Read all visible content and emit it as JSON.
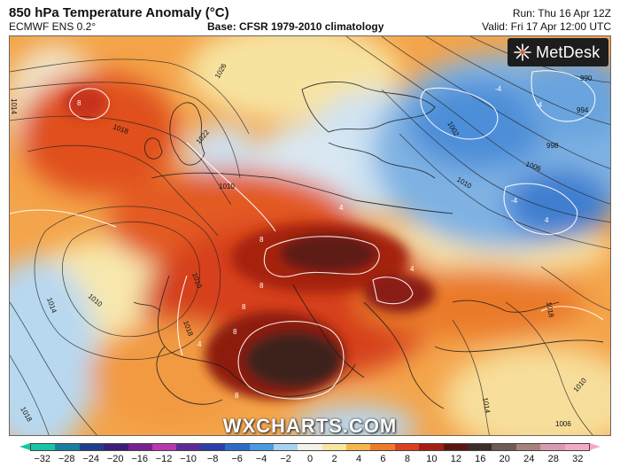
{
  "header": {
    "title": "850 hPa Temperature Anomaly (°C)",
    "model": "ECMWF ENS 0.2°",
    "base": "Base: CFSR 1979-2010 climatology",
    "run": "Run: Thu 16 Apr 12Z",
    "valid": "Valid: Fri 17 Apr 12:00 UTC"
  },
  "logo": {
    "text": "MetDesk",
    "icon": "metdesk-burst-icon"
  },
  "watermark": "WXCHARTS.COM",
  "isobar_labels": [
    "1026",
    "1022",
    "1018",
    "1014",
    "1010",
    "1010",
    "1014",
    "1010",
    "1018",
    "1002",
    "1006",
    "998",
    "994",
    "990",
    "1010",
    "1006",
    "1014",
    "1010",
    "1018",
    "1018"
  ],
  "anomaly_labels": [
    "8",
    "8",
    "8",
    "8",
    "8",
    "8",
    "4",
    "4",
    "4",
    "4",
    "-4",
    "-4",
    "-4"
  ],
  "colorbar": {
    "ticks": [
      "−32",
      "−28",
      "−24",
      "−20",
      "−16",
      "−12",
      "−10",
      "−8",
      "−6",
      "−4",
      "−2",
      "0",
      "2",
      "4",
      "6",
      "8",
      "10",
      "12",
      "16",
      "20",
      "24",
      "28",
      "32"
    ],
    "colors": [
      "#17c6a6",
      "#1a7f9e",
      "#1f3e8f",
      "#3a1f78",
      "#7a2090",
      "#b838b0",
      "#5b2b9a",
      "#2c3fa8",
      "#2b6cc8",
      "#4b9be0",
      "#a9d2f0",
      "#f2f2e8",
      "#f9e6a1",
      "#f7b64e",
      "#ee7b2a",
      "#d8431f",
      "#a71f12",
      "#5a1710",
      "#3c2c2a",
      "#6e5a58",
      "#a6827e",
      "#d89ab1",
      "#f4a8c6"
    ],
    "left_arrow_color": "#17c6a6",
    "right_arrow_color": "#f4a8c6"
  }
}
